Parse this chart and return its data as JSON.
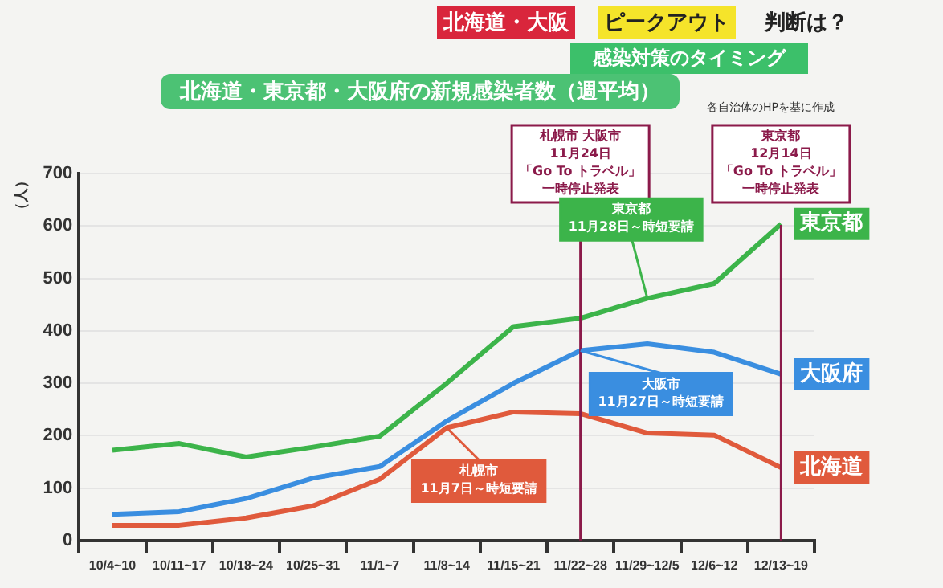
{
  "chart_data": {
    "type": "line",
    "title": "北海道・東京都・大阪府の新規感染者数（週平均）",
    "subtitle": "感染対策のタイミング",
    "ylabel": "（人）",
    "categories": [
      "10/4~10",
      "10/11~17",
      "10/18~24",
      "10/25~31",
      "11/1~7",
      "11/8~14",
      "11/15~21",
      "11/22~28",
      "11/29~12/5",
      "12/6~12",
      "12/13~19"
    ],
    "series": [
      {
        "name": "東京都",
        "color": "#3cb44a",
        "values": [
          172,
          185,
          159,
          178,
          199,
          300,
          408,
          424,
          462,
          490,
          604
        ]
      },
      {
        "name": "大阪府",
        "color": "#3a8ee0",
        "values": [
          50,
          55,
          80,
          119,
          141,
          228,
          300,
          362,
          375,
          359,
          317
        ]
      },
      {
        "name": "北海道",
        "color": "#e05a3c",
        "values": [
          29,
          29,
          43,
          66,
          117,
          215,
          245,
          242,
          205,
          201,
          139
        ]
      }
    ],
    "ylim": [
      0,
      700
    ],
    "yticks": [
      0,
      100,
      200,
      300,
      400,
      500,
      600,
      700
    ],
    "grid": "y",
    "legend": false,
    "marker": "none",
    "line_style": "solid",
    "ref_lines": [
      {
        "axis": "x",
        "value": "11/22~28",
        "label": "札幌市 大阪市11月24日「Go To トラベル」一時停止発表",
        "color": "#8b1a4a"
      },
      {
        "axis": "x",
        "value": "12/13~19",
        "label": "東京都12月14日「Go To トラベル」一時停止発表",
        "color": "#8b1a4a"
      }
    ],
    "annotations": [
      "北海道・大阪",
      "ピークアウト",
      "判断は？",
      "各自治体のHPを基に作成",
      {
        "text": "東京都\n11月28日～時短要請",
        "x": "11/29~12/5",
        "y": 462
      },
      {
        "text": "大阪市\n11月27日～時短要請",
        "x": "11/22~28",
        "y": 362
      },
      {
        "text": "札幌市\n11月7日～時短要請",
        "x": "11/8~14",
        "y": 215
      }
    ]
  }
}
